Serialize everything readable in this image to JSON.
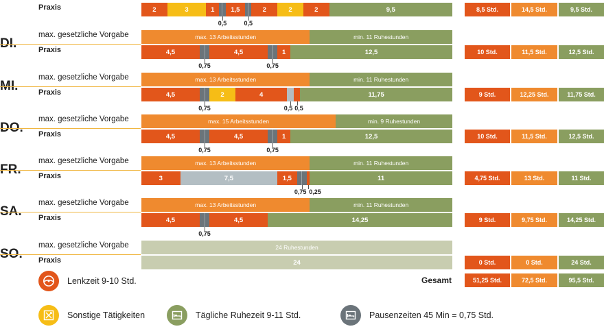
{
  "colors": {
    "lenk": "#e2561b",
    "lenk_req": "#ef8a2f",
    "sonst": "#f6bd16",
    "ruhe": "#8a9e60",
    "ruhe_req": "#8a9e60",
    "ruhe_free": "#c8cdb0",
    "pause": "#6b747a",
    "idle": "#b3bec3"
  },
  "labels": {
    "vorgabe": "max. gesetzliche Vorgabe",
    "praxis": "Praxis",
    "gesamt": "Gesamt"
  },
  "legend": [
    {
      "label": "Lenkzeit 9-10 Std.",
      "color": "#e2561b",
      "icon": "steering-wheel-icon"
    },
    {
      "label": "Sonstige Tätigkeiten",
      "color": "#f6bd16",
      "icon": "wrench-box-icon"
    },
    {
      "label": "Tägliche Ruhezeit 9-11 Std.",
      "color": "#8a9e60",
      "icon": "bed-icon"
    },
    {
      "label": "Pausenzeiten 45 Min = 0,75 Std.",
      "color": "#6b747a",
      "icon": "bed-icon"
    }
  ],
  "chart_data": {
    "type": "bar",
    "days": [
      {
        "day": "",
        "req": [],
        "actual": [
          {
            "kind": "lenk",
            "value": 2,
            "label": "2"
          },
          {
            "kind": "sonst",
            "value": 3,
            "label": "3"
          },
          {
            "kind": "lenk",
            "value": 1,
            "label": "1"
          },
          {
            "kind": "pause",
            "value": 0.5,
            "label": ""
          },
          {
            "kind": "lenk",
            "value": 1.5,
            "label": "1,5"
          },
          {
            "kind": "pause",
            "value": 0.5,
            "label": ""
          },
          {
            "kind": "lenk",
            "value": 2,
            "label": "2"
          },
          {
            "kind": "sonst",
            "value": 2,
            "label": "2"
          },
          {
            "kind": "lenk",
            "value": 2,
            "label": "2"
          },
          {
            "kind": "ruhe",
            "value": 9.5,
            "label": "9,5"
          }
        ],
        "notes": [
          "0,5",
          "0,5"
        ],
        "totals": [
          "8,5 Std.",
          "14,5 Std.",
          "9,5 Std."
        ]
      },
      {
        "day": "DI.",
        "req": [
          {
            "kind": "lenk_req",
            "value": 13,
            "label": "max. 13 Arbeitsstunden"
          },
          {
            "kind": "ruhe_req",
            "value": 11,
            "label": "min. 11 Ruhestunden"
          }
        ],
        "actual": [
          {
            "kind": "lenk",
            "value": 4.5,
            "label": "4,5"
          },
          {
            "kind": "pause",
            "value": 0.75,
            "label": ""
          },
          {
            "kind": "lenk",
            "value": 4.5,
            "label": "4,5"
          },
          {
            "kind": "pause",
            "value": 0.75,
            "label": ""
          },
          {
            "kind": "lenk",
            "value": 1,
            "label": "1"
          },
          {
            "kind": "ruhe",
            "value": 12.5,
            "label": "12,5"
          }
        ],
        "notes": [
          "0,75",
          "0,75"
        ],
        "totals": [
          "10 Std.",
          "11,5 Std.",
          "12,5 Std."
        ]
      },
      {
        "day": "MI.",
        "req": [
          {
            "kind": "lenk_req",
            "value": 13,
            "label": "max. 13 Arbeitsstunden"
          },
          {
            "kind": "ruhe_req",
            "value": 11,
            "label": "min. 11 Ruhestunden"
          }
        ],
        "actual": [
          {
            "kind": "lenk",
            "value": 4.5,
            "label": "4,5"
          },
          {
            "kind": "pause",
            "value": 0.75,
            "label": ""
          },
          {
            "kind": "sonst",
            "value": 2,
            "label": "2"
          },
          {
            "kind": "lenk",
            "value": 4,
            "label": "4"
          },
          {
            "kind": "idle",
            "value": 0.5,
            "label": ""
          },
          {
            "kind": "lenk",
            "value": 0.5,
            "label": ""
          },
          {
            "kind": "ruhe",
            "value": 11.75,
            "label": "11,75"
          }
        ],
        "notes": [
          "0,75",
          "0,5",
          "0,5"
        ],
        "totals": [
          "9 Std.",
          "12,25 Std.",
          "11,75 Std."
        ]
      },
      {
        "day": "DO.",
        "req": [
          {
            "kind": "lenk_req",
            "value": 15,
            "label": "max. 15 Arbeitsstunden"
          },
          {
            "kind": "ruhe_req",
            "value": 9,
            "label": "min. 9 Ruhestunden"
          }
        ],
        "actual": [
          {
            "kind": "lenk",
            "value": 4.5,
            "label": "4,5"
          },
          {
            "kind": "pause",
            "value": 0.75,
            "label": ""
          },
          {
            "kind": "lenk",
            "value": 4.5,
            "label": "4,5"
          },
          {
            "kind": "pause",
            "value": 0.75,
            "label": ""
          },
          {
            "kind": "lenk",
            "value": 1,
            "label": "1"
          },
          {
            "kind": "ruhe",
            "value": 12.5,
            "label": "12,5"
          }
        ],
        "notes": [
          "0,75",
          "0,75"
        ],
        "totals": [
          "10 Std.",
          "11,5 Std.",
          "12,5 Std."
        ]
      },
      {
        "day": "FR.",
        "req": [
          {
            "kind": "lenk_req",
            "value": 13,
            "label": "max. 13 Arbeitsstunden"
          },
          {
            "kind": "ruhe_req",
            "value": 11,
            "label": "min. 11 Ruhestunden"
          }
        ],
        "actual": [
          {
            "kind": "lenk",
            "value": 3,
            "label": "3"
          },
          {
            "kind": "idle",
            "value": 7.5,
            "label": "7,5"
          },
          {
            "kind": "lenk",
            "value": 1.5,
            "label": "1,5"
          },
          {
            "kind": "pause",
            "value": 0.75,
            "label": ""
          },
          {
            "kind": "lenk",
            "value": 0.25,
            "label": ""
          },
          {
            "kind": "ruhe",
            "value": 11,
            "label": "11"
          }
        ],
        "notes": [
          "0,75",
          "0,25"
        ],
        "totals": [
          "4,75 Std.",
          "13 Std.",
          "11 Std."
        ]
      },
      {
        "day": "SA.",
        "req": [
          {
            "kind": "lenk_req",
            "value": 13,
            "label": "max. 13 Arbeitsstunden"
          },
          {
            "kind": "ruhe_req",
            "value": 11,
            "label": "min. 11 Ruhestunden"
          }
        ],
        "actual": [
          {
            "kind": "lenk",
            "value": 4.5,
            "label": "4,5"
          },
          {
            "kind": "pause",
            "value": 0.75,
            "label": ""
          },
          {
            "kind": "lenk",
            "value": 4.5,
            "label": "4,5"
          },
          {
            "kind": "ruhe",
            "value": 14.25,
            "label": "14,25"
          }
        ],
        "notes": [
          "0,75"
        ],
        "totals": [
          "9 Std.",
          "9,75 Std.",
          "14,25 Std."
        ]
      },
      {
        "day": "SO.",
        "req": [
          {
            "kind": "ruhe_free",
            "value": 24,
            "label": "24 Ruhestunden"
          }
        ],
        "actual": [
          {
            "kind": "ruhe_free",
            "value": 24,
            "label": "24"
          }
        ],
        "notes": [],
        "totals": [
          "0 Std.",
          "0 Std.",
          "24 Std."
        ]
      }
    ],
    "gesamt": [
      "51,25 Std.",
      "72,5 Std.",
      "95,5 Std."
    ]
  }
}
